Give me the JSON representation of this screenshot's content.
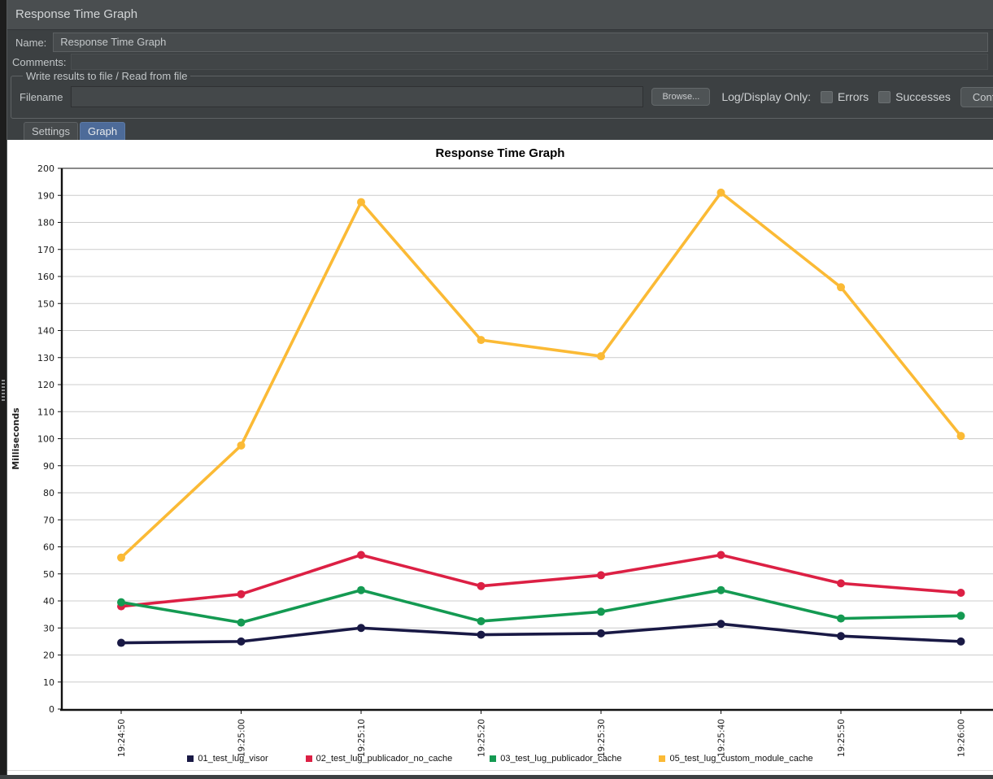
{
  "window": {
    "title": "Response Time Graph"
  },
  "name_row": {
    "label": "Name:",
    "value": "Response Time Graph"
  },
  "comments_row": {
    "label": "Comments:",
    "value": ""
  },
  "file_group": {
    "legend": "Write results to file / Read from file",
    "filename_label": "Filename",
    "filename_value": "",
    "filename_placeholder": "",
    "browse_button": "Browse...",
    "log_display_label": "Log/Display Only:",
    "errors_label": "Errors",
    "errors_checked": false,
    "successes_label": "Successes",
    "successes_checked": false,
    "configure_button": "Configure"
  },
  "tabs": [
    {
      "label": "Settings",
      "selected": false
    },
    {
      "label": "Graph",
      "selected": true
    }
  ],
  "chart_data": {
    "type": "line",
    "title": "Response Time Graph",
    "xlabel": "",
    "ylabel": "Milliseconds",
    "ylim": [
      0,
      200
    ],
    "ytick_step": 10,
    "grid": true,
    "legend_position": "bottom",
    "marker": "circle",
    "categories": [
      "19:24:50",
      "19:25:00",
      "19:25:10",
      "19:25:20",
      "19:25:30",
      "19:25:40",
      "19:25:50",
      "19:26:00"
    ],
    "series": [
      {
        "name": "01_test_lug_visor",
        "color": "#191945",
        "values": [
          24.5,
          25,
          30,
          27.5,
          28,
          31.5,
          27,
          25
        ]
      },
      {
        "name": "02_test_lug_publicador_no_cache",
        "color": "#DC2044",
        "values": [
          38,
          42.5,
          57,
          45.5,
          49.5,
          57,
          46.5,
          43
        ]
      },
      {
        "name": "03_test_lug_publicador_cache",
        "color": "#149A52",
        "values": [
          39.5,
          32,
          44,
          32.5,
          36,
          44,
          33.5,
          34.5
        ]
      },
      {
        "name": "05_test_lug_custom_module_cache",
        "color": "#FBBA35",
        "values": [
          56,
          97.5,
          187.5,
          136.5,
          130.5,
          191,
          156,
          101
        ]
      }
    ],
    "colors": {
      "gridline": "#CCCCCC",
      "axis": "#111111",
      "tick_text": "#1A1A1A"
    }
  }
}
